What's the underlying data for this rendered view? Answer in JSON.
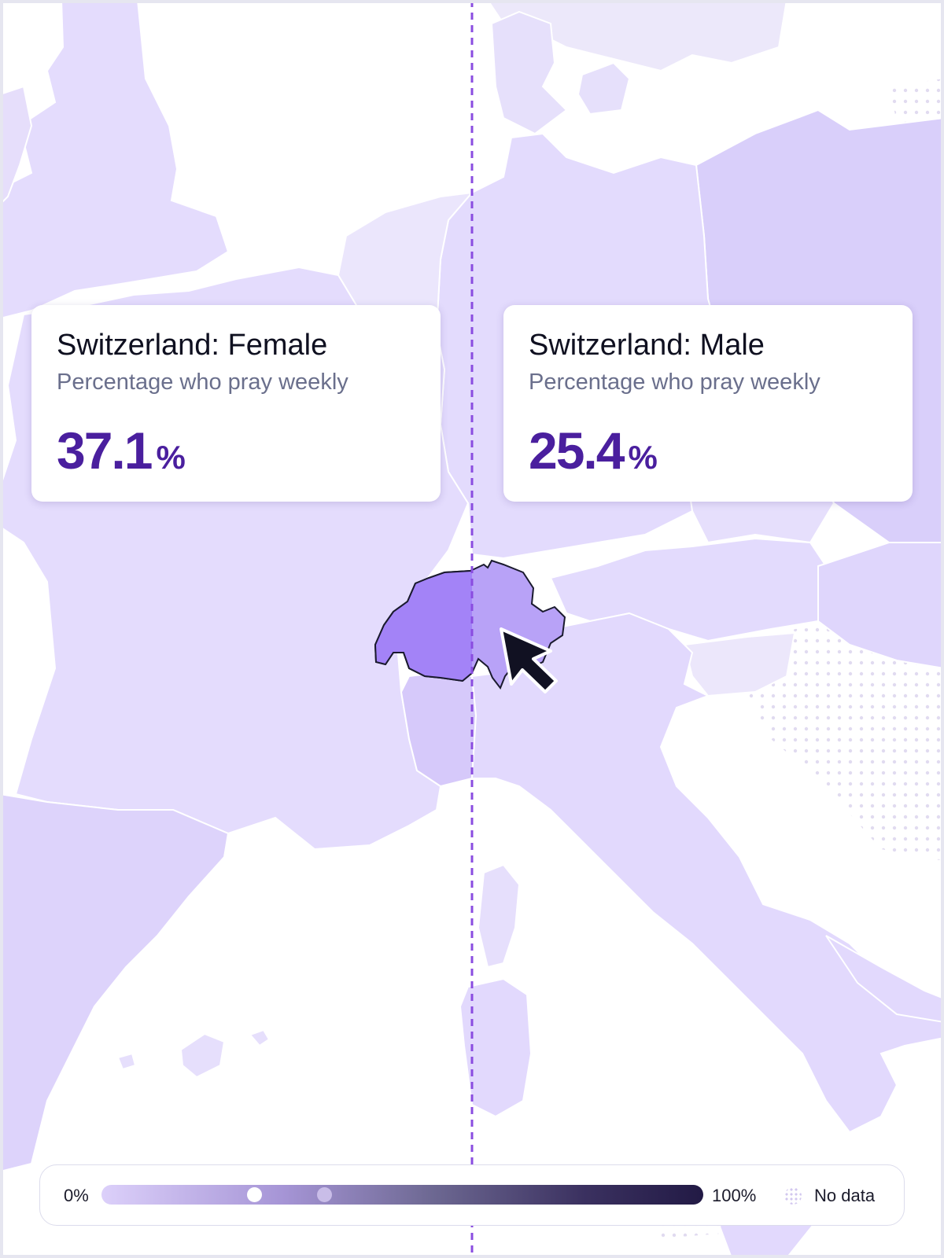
{
  "cards": {
    "female": {
      "title": "Switzerland: Female",
      "subtitle": "Percentage who pray weekly",
      "value": "37.1",
      "unit": "%"
    },
    "male": {
      "title": "Switzerland: Male",
      "subtitle": "Percentage who pray weekly",
      "value": "25.4",
      "unit": "%"
    }
  },
  "legend": {
    "min_label": "0%",
    "max_label": "100%",
    "no_data_label": "No data",
    "markers": [
      0.254,
      0.371
    ]
  },
  "colors": {
    "switzerland_female": "#a383f7",
    "switzerland_male": "#b8a2f7",
    "value_text": "#4a1f9e",
    "divider": "#8a4ce0"
  },
  "cursor": "arrow-cursor-icon"
}
